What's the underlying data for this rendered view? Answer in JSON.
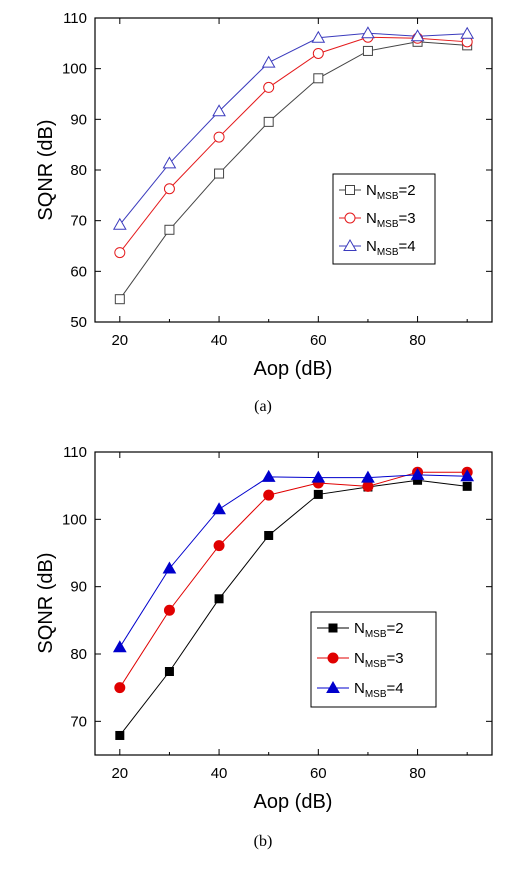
{
  "chart_data": [
    {
      "type": "line",
      "caption": "(a)",
      "xlabel": "Aop (dB)",
      "ylabel": "SQNR (dB)",
      "xlim": [
        15,
        95
      ],
      "ylim": [
        50,
        110
      ],
      "xticks": [
        "20",
        "40",
        "60",
        "80"
      ],
      "yticks": [
        "50",
        "60",
        "70",
        "80",
        "90",
        "100",
        "110"
      ],
      "x": [
        20,
        30,
        40,
        50,
        60,
        70,
        80,
        90
      ],
      "marker_style": "open",
      "legend_position": "center-right",
      "series": [
        {
          "name_main": "N",
          "name_sub": "MSB",
          "name_tail": "=2",
          "marker": "square",
          "color": "#444444",
          "values": [
            54.5,
            68.2,
            79.3,
            89.5,
            98.1,
            103.5,
            105.3,
            104.6
          ]
        },
        {
          "name_main": "N",
          "name_sub": "MSB",
          "name_tail": "=3",
          "marker": "circle",
          "color": "#e41a1c",
          "values": [
            63.7,
            76.3,
            86.5,
            96.3,
            103.0,
            106.2,
            106.0,
            105.3
          ]
        },
        {
          "name_main": "N",
          "name_sub": "MSB",
          "name_tail": "=4",
          "marker": "triangle",
          "color": "#3b3bbd",
          "values": [
            69.2,
            81.3,
            91.6,
            101.2,
            106.1,
            107.0,
            106.4,
            106.9
          ]
        }
      ]
    },
    {
      "type": "line",
      "caption": "(b)",
      "xlabel": "Aop (dB)",
      "ylabel": "SQNR (dB)",
      "xlim": [
        15,
        95
      ],
      "ylim": [
        65,
        110
      ],
      "xticks": [
        "20",
        "40",
        "60",
        "80"
      ],
      "yticks": [
        "70",
        "80",
        "90",
        "100",
        "110"
      ],
      "x": [
        20,
        30,
        40,
        50,
        60,
        70,
        80,
        90
      ],
      "marker_style": "filled",
      "legend_position": "center-right",
      "series": [
        {
          "name_main": "N",
          "name_sub": "MSB",
          "name_tail": "=2",
          "marker": "square",
          "color": "#000000",
          "values": [
            67.9,
            77.4,
            88.2,
            97.6,
            103.7,
            104.8,
            105.8,
            104.9
          ]
        },
        {
          "name_main": "N",
          "name_sub": "MSB",
          "name_tail": "=3",
          "marker": "circle",
          "color": "#e00000",
          "values": [
            75.0,
            86.5,
            96.1,
            103.6,
            105.4,
            104.9,
            107.0,
            107.0
          ]
        },
        {
          "name_main": "N",
          "name_sub": "MSB",
          "name_tail": "=4",
          "marker": "triangle",
          "color": "#0000cc",
          "values": [
            81.0,
            92.7,
            101.5,
            106.3,
            106.2,
            106.2,
            106.6,
            106.4
          ]
        }
      ]
    }
  ]
}
